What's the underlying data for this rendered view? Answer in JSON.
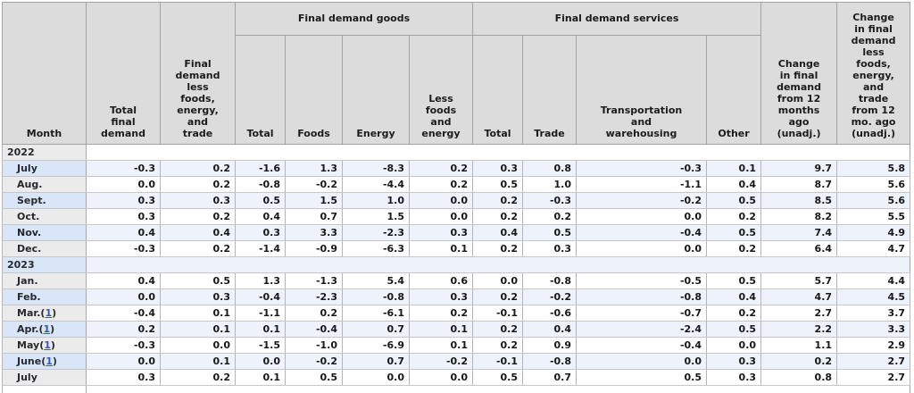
{
  "chart_data": {
    "type": "table",
    "columns": {
      "month": "Month",
      "total_final_demand": "Total\nfinal\ndemand",
      "fd_less_fet": "Final\ndemand\nless\nfoods,\nenergy,\nand\ntrade",
      "goods_group": "Final demand goods",
      "goods": [
        "Total",
        "Foods",
        "Energy",
        "Less\nfoods\nand\nenergy"
      ],
      "services_group": "Final demand services",
      "services": [
        "Total",
        "Trade",
        "Transportation\nand\nwarehousing",
        "Other"
      ],
      "chg_12mo": "Change\nin final\ndemand\nfrom 12\nmonths\nago\n(unadj.)",
      "chg_12mo_less": "Change\nin final\ndemand\nless\nfoods,\nenergy,\nand\ntrade\nfrom 12\nmo. ago\n(unadj.)"
    },
    "footnote_parens": [
      "(",
      ")"
    ],
    "groups": [
      {
        "year": "2022",
        "rows": [
          {
            "month": "July",
            "footnote": null,
            "values": [
              "-0.3",
              "0.2",
              "-1.6",
              "1.3",
              "-8.3",
              "0.2",
              "0.3",
              "0.8",
              "-0.3",
              "0.1",
              "9.7",
              "5.8"
            ]
          },
          {
            "month": "Aug.",
            "footnote": null,
            "values": [
              "0.0",
              "0.2",
              "-0.8",
              "-0.2",
              "-4.4",
              "0.2",
              "0.5",
              "1.0",
              "-1.1",
              "0.4",
              "8.7",
              "5.6"
            ]
          },
          {
            "month": "Sept.",
            "footnote": null,
            "values": [
              "0.3",
              "0.3",
              "0.5",
              "1.5",
              "1.0",
              "0.0",
              "0.2",
              "-0.3",
              "-0.2",
              "0.5",
              "8.5",
              "5.6"
            ]
          },
          {
            "month": "Oct.",
            "footnote": null,
            "values": [
              "0.3",
              "0.2",
              "0.4",
              "0.7",
              "1.5",
              "0.0",
              "0.2",
              "0.2",
              "0.0",
              "0.2",
              "8.2",
              "5.5"
            ]
          },
          {
            "month": "Nov.",
            "footnote": null,
            "values": [
              "0.4",
              "0.4",
              "0.3",
              "3.3",
              "-2.3",
              "0.3",
              "0.4",
              "0.5",
              "-0.4",
              "0.5",
              "7.4",
              "4.9"
            ]
          },
          {
            "month": "Dec.",
            "footnote": null,
            "values": [
              "-0.3",
              "0.2",
              "-1.4",
              "-0.9",
              "-6.3",
              "0.1",
              "0.2",
              "0.3",
              "0.0",
              "0.2",
              "6.4",
              "4.7"
            ]
          }
        ]
      },
      {
        "year": "2023",
        "rows": [
          {
            "month": "Jan.",
            "footnote": null,
            "values": [
              "0.4",
              "0.5",
              "1.3",
              "-1.3",
              "5.4",
              "0.6",
              "0.0",
              "-0.8",
              "-0.5",
              "0.5",
              "5.7",
              "4.4"
            ]
          },
          {
            "month": "Feb.",
            "footnote": null,
            "values": [
              "0.0",
              "0.3",
              "-0.4",
              "-2.3",
              "-0.8",
              "0.3",
              "0.2",
              "-0.2",
              "-0.8",
              "0.4",
              "4.7",
              "4.5"
            ]
          },
          {
            "month": "Mar.",
            "footnote": "1",
            "values": [
              "-0.4",
              "0.1",
              "-1.1",
              "0.2",
              "-6.1",
              "0.2",
              "-0.1",
              "-0.6",
              "-0.7",
              "0.2",
              "2.7",
              "3.7"
            ]
          },
          {
            "month": "Apr.",
            "footnote": "1",
            "values": [
              "0.2",
              "0.1",
              "0.1",
              "-0.4",
              "0.7",
              "0.1",
              "0.2",
              "0.4",
              "-2.4",
              "0.5",
              "2.2",
              "3.3"
            ]
          },
          {
            "month": "May",
            "footnote": "1",
            "values": [
              "-0.3",
              "0.0",
              "-1.5",
              "-1.0",
              "-6.9",
              "0.1",
              "0.2",
              "0.9",
              "-0.4",
              "0.0",
              "1.1",
              "2.9"
            ]
          },
          {
            "month": "June",
            "footnote": "1",
            "values": [
              "0.0",
              "0.1",
              "0.0",
              "-0.2",
              "0.7",
              "-0.2",
              "-0.1",
              "-0.8",
              "0.0",
              "0.3",
              "0.2",
              "2.7"
            ]
          },
          {
            "month": "July",
            "footnote": null,
            "values": [
              "0.3",
              "0.2",
              "0.1",
              "0.5",
              "0.0",
              "0.0",
              "0.5",
              "0.7",
              "0.5",
              "0.3",
              "0.8",
              "2.7"
            ]
          }
        ]
      }
    ]
  }
}
